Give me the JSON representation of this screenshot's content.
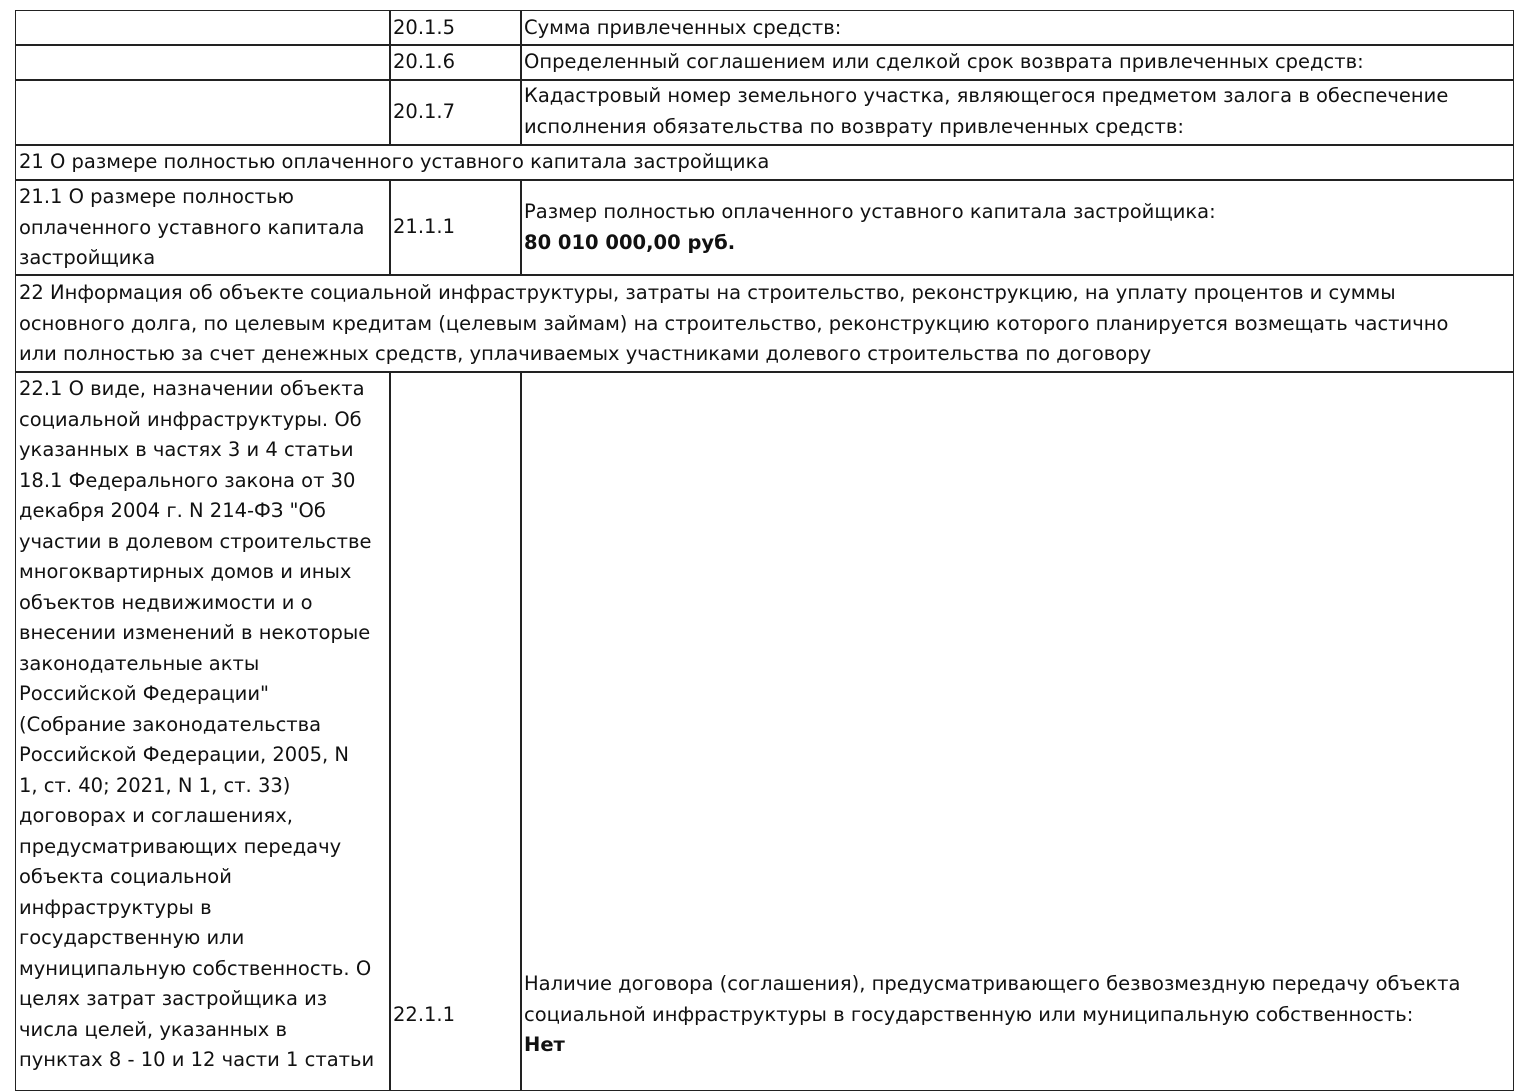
{
  "rows": {
    "r2015": {
      "code": "20.1.5",
      "text": "Сумма привлеченных средств:"
    },
    "r2016": {
      "code": "20.1.6",
      "text": "Определенный соглашением или сделкой срок возврата привлеченных средств:"
    },
    "r2017": {
      "code": "20.1.7",
      "text": "Кадастровый номер земельного участка, являющегося предметом залога в обеспечение\nисполнения обязательства по возврату привлеченных средств:"
    },
    "s21": {
      "heading": "21 О размере полностью оплаченного уставного капитала застройщика"
    },
    "r211": {
      "label": "21.1 О размере полностью\nоплаченного уставного капитала\nзастройщика",
      "code": "21.1.1",
      "text": "Размер полностью оплаченного уставного капитала застройщика:",
      "value": "80 010 000,00 руб."
    },
    "s22": {
      "heading": "22 Информация об объекте социальной инфраструктуры, затраты на строительство, реконструкцию, на уплату процентов и суммы\nосновного долга, по целевым кредитам (целевым займам) на строительство, реконструкцию которого планируется возмещать частично\nили полностью за счет денежных средств, уплачиваемых участниками долевого строительства по договору"
    },
    "r221": {
      "label": "22.1 О виде, назначении объекта\nсоциальной инфраструктуры. Об\nуказанных в частях 3 и 4 статьи\n18.1 Федерального закона от 30\nдекабря 2004 г. N 214-ФЗ \"Об\nучастии в долевом строительстве\nмногоквартирных домов и иных\nобъектов недвижимости и о\nвнесении изменений в некоторые\nзаконодательные акты\nРоссийской Федерации\"\n(Собрание законодательства\nРоссийской Федерации, 2005, N\n1, ст. 40; 2021, N 1, ст. 33)\nдоговорах и соглашениях,\nпредусматривающих передачу\nобъекта социальной\nинфраструктуры в\nгосударственную или\nмуниципальную собственность. О\nцелях затрат застройщика из\nчисла целей, указанных в\nпунктах 8 - 10 и 12 части 1 статьи",
      "code": "22.1.1",
      "text": "Наличие договора (соглашения), предусматривающего безвозмездную передачу объекта\nсоциальной инфраструктуры в государственную или муниципальную собственность:",
      "value": "Нет"
    }
  }
}
